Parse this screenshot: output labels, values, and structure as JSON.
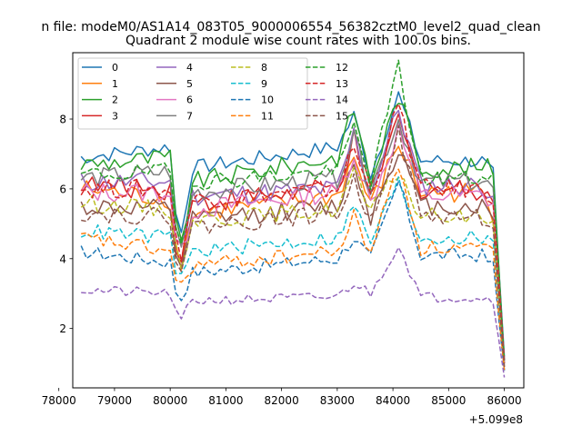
{
  "chart_data": {
    "type": "line",
    "suptitle": "n file: modeM0/AS1A14_083T05_9000006554_56382cztM0_level2_quad_clean",
    "title": "Quadrant 2 module wise count rates with 100.0s bins.",
    "xlabel": "",
    "ylabel": "",
    "x_offset_label": "+5.099e8",
    "xlim": [
      78250,
      86350
    ],
    "ylim": [
      0.3,
      9.9
    ],
    "x_ticks": [
      78000,
      79000,
      80000,
      81000,
      82000,
      83000,
      84000,
      85000,
      86000
    ],
    "x_tick_labels": [
      "78000",
      "79000",
      "80000",
      "81000",
      "82000",
      "83000",
      "84000",
      "85000",
      "86000"
    ],
    "y_ticks": [
      2,
      4,
      6,
      8
    ],
    "y_tick_labels": [
      "2",
      "4",
      "6",
      "8"
    ],
    "x_start": 78400,
    "x_step": 100,
    "knots": [
      78400,
      80000,
      80150,
      80400,
      83000,
      83300,
      83600,
      84100,
      84500,
      85600,
      85800,
      86000
    ],
    "legend_columns": 4,
    "series": [
      {
        "name": "0",
        "color": "#1f77b4",
        "dash": "solid",
        "profile": [
          6.9,
          7.2,
          4.3,
          6.6,
          7.2,
          8.1,
          6.4,
          8.7,
          6.8,
          6.8,
          6.4,
          1.2
        ],
        "amp": 0.22
      },
      {
        "name": "1",
        "color": "#ff7f0e",
        "dash": "solid",
        "profile": [
          6.0,
          5.7,
          3.6,
          5.3,
          5.8,
          6.9,
          5.5,
          7.3,
          5.9,
          5.9,
          5.3,
          0.9
        ],
        "amp": 0.3
      },
      {
        "name": "2",
        "color": "#2ca02c",
        "dash": "solid",
        "profile": [
          6.7,
          6.9,
          4.0,
          6.2,
          6.9,
          8.3,
          6.2,
          8.7,
          6.6,
          6.6,
          6.6,
          1.0
        ],
        "amp": 0.28
      },
      {
        "name": "3",
        "color": "#d62728",
        "dash": "solid",
        "profile": [
          6.1,
          6.0,
          3.7,
          5.6,
          6.0,
          7.4,
          5.8,
          8.0,
          6.0,
          6.0,
          5.8,
          1.1
        ],
        "amp": 0.32
      },
      {
        "name": "4",
        "color": "#9467bd",
        "dash": "solid",
        "profile": [
          6.2,
          6.2,
          3.9,
          5.8,
          6.0,
          7.6,
          5.9,
          8.3,
          6.1,
          6.1,
          5.9,
          1.1
        ],
        "amp": 0.3
      },
      {
        "name": "5",
        "color": "#8c564b",
        "dash": "solid",
        "profile": [
          5.5,
          5.4,
          3.5,
          5.1,
          5.5,
          6.7,
          5.2,
          7.2,
          5.5,
          5.5,
          5.2,
          1.0
        ],
        "amp": 0.28
      },
      {
        "name": "6",
        "color": "#e377c2",
        "dash": "solid",
        "profile": [
          5.9,
          5.9,
          3.8,
          5.4,
          5.9,
          7.0,
          5.6,
          7.7,
          5.8,
          5.8,
          5.6,
          1.0
        ],
        "amp": 0.3
      },
      {
        "name": "7",
        "color": "#7f7f7f",
        "dash": "solid",
        "profile": [
          6.3,
          6.5,
          3.9,
          5.9,
          6.3,
          7.4,
          6.0,
          8.0,
          6.2,
          6.2,
          6.0,
          1.1
        ],
        "amp": 0.28
      },
      {
        "name": "8",
        "color": "#bcbd22",
        "dash": "dashed",
        "profile": [
          5.6,
          5.4,
          3.6,
          5.1,
          5.4,
          6.5,
          5.3,
          6.5,
          5.2,
          5.2,
          5.0,
          0.9
        ],
        "amp": 0.25
      },
      {
        "name": "9",
        "color": "#17becf",
        "dash": "dashed",
        "profile": [
          4.8,
          4.6,
          3.3,
          4.2,
          4.6,
          5.5,
          4.5,
          6.2,
          4.6,
          4.6,
          4.4,
          0.8
        ],
        "amp": 0.22
      },
      {
        "name": "10",
        "color": "#1f77b4",
        "dash": "dashed",
        "profile": [
          4.2,
          3.9,
          2.7,
          3.6,
          4.0,
          4.6,
          4.0,
          6.2,
          4.1,
          4.1,
          3.8,
          0.8
        ],
        "amp": 0.2
      },
      {
        "name": "11",
        "color": "#ff7f0e",
        "dash": "dashed",
        "profile": [
          4.6,
          4.2,
          3.0,
          3.8,
          4.2,
          5.2,
          4.2,
          6.7,
          4.3,
          4.3,
          4.1,
          0.8
        ],
        "amp": 0.22
      },
      {
        "name": "12",
        "color": "#2ca02c",
        "dash": "dashed",
        "profile": [
          6.4,
          6.5,
          4.0,
          6.2,
          6.5,
          7.8,
          6.2,
          9.5,
          6.3,
          6.3,
          6.2,
          1.1
        ],
        "amp": 0.25
      },
      {
        "name": "13",
        "color": "#d62728",
        "dash": "dashed",
        "profile": [
          6.0,
          6.0,
          3.8,
          5.7,
          6.0,
          7.2,
          5.8,
          8.4,
          6.0,
          6.0,
          5.8,
          1.0
        ],
        "amp": 0.28
      },
      {
        "name": "14",
        "color": "#9467bd",
        "dash": "dashed",
        "profile": [
          3.1,
          3.0,
          2.1,
          2.8,
          2.9,
          3.3,
          3.0,
          4.4,
          2.9,
          2.9,
          2.8,
          0.6
        ],
        "amp": 0.15
      },
      {
        "name": "15",
        "color": "#8c564b",
        "dash": "dashed",
        "profile": [
          5.3,
          5.2,
          3.5,
          4.9,
          5.3,
          6.2,
          5.1,
          7.6,
          5.2,
          5.2,
          5.0,
          0.9
        ],
        "amp": 0.25
      }
    ]
  }
}
